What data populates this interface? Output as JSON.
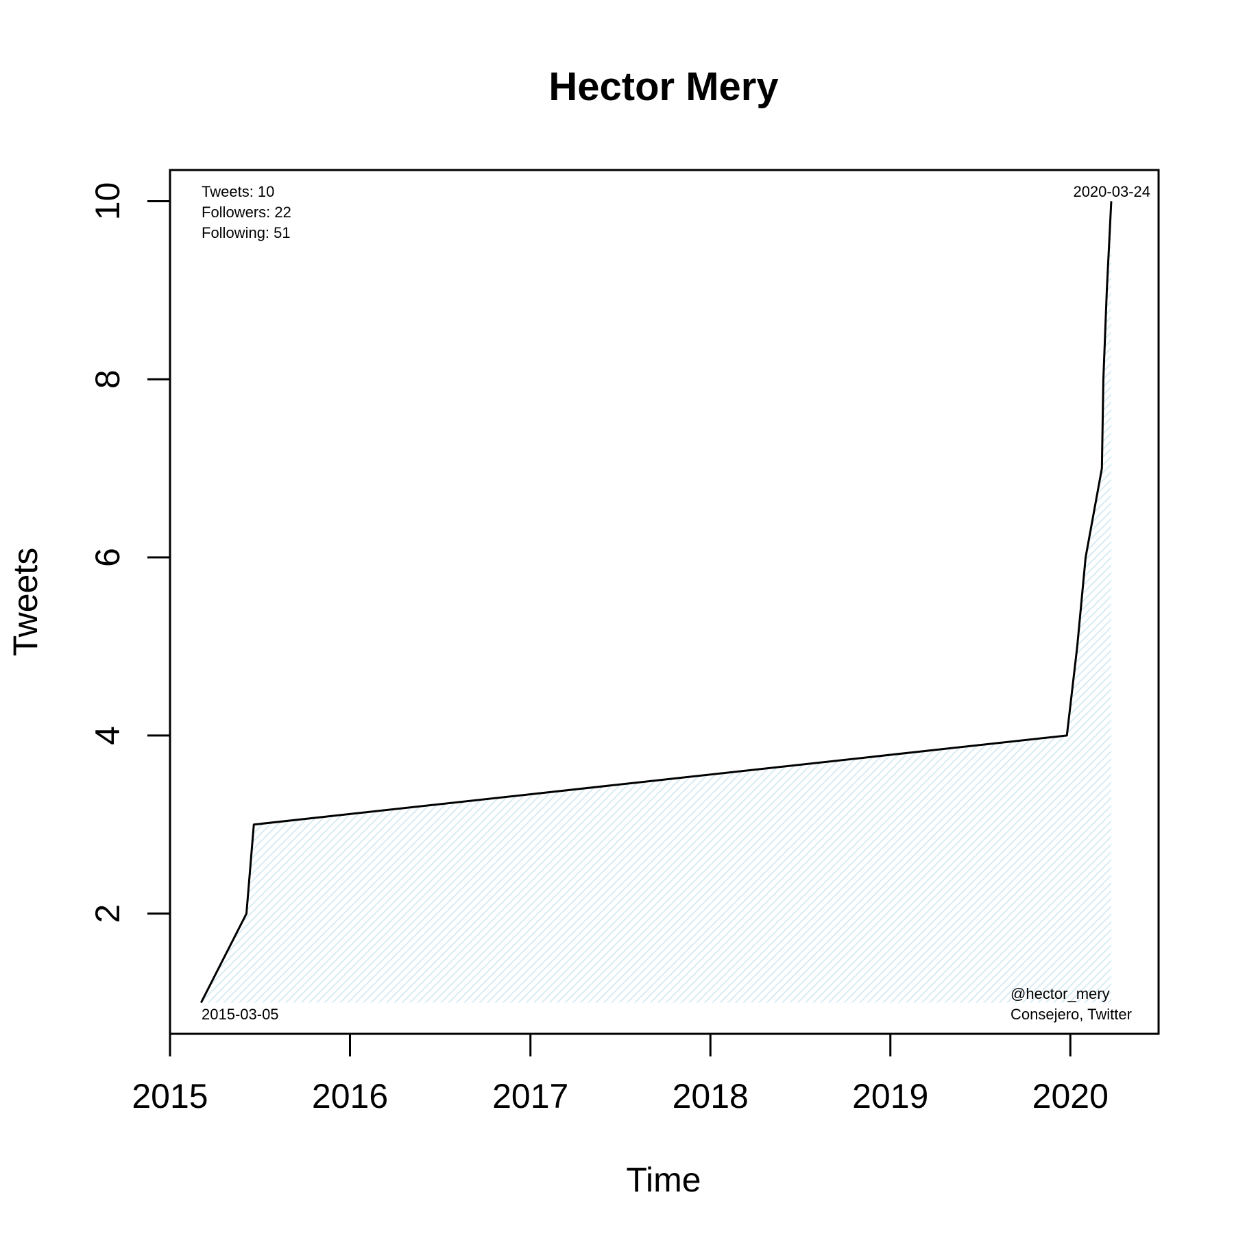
{
  "chart_data": {
    "type": "area",
    "title": "Hector Mery",
    "xlabel": "Time",
    "ylabel": "Tweets",
    "x_ticks": [
      "2015",
      "2016",
      "2017",
      "2018",
      "2019",
      "2020"
    ],
    "y_ticks": [
      2,
      4,
      6,
      8,
      10
    ],
    "xlim": [
      "2015-01-01",
      "2020-06-28"
    ],
    "ylim": [
      0.65,
      10.35
    ],
    "grid": false,
    "fill_color": "#d8ecf3",
    "line_color": "#000000",
    "points": [
      {
        "x": "2015-03-05",
        "y": 1
      },
      {
        "x": "2015-06-05",
        "y": 2
      },
      {
        "x": "2015-06-20",
        "y": 3
      },
      {
        "x": "2019-12-25",
        "y": 4
      },
      {
        "x": "2020-01-15",
        "y": 5
      },
      {
        "x": "2020-02-01",
        "y": 6
      },
      {
        "x": "2020-03-05",
        "y": 7
      },
      {
        "x": "2020-03-08",
        "y": 8
      },
      {
        "x": "2020-03-15",
        "y": 9
      },
      {
        "x": "2020-03-24",
        "y": 10
      }
    ],
    "annotations": {
      "stats": [
        "Tweets: 10",
        "Followers: 22",
        "Following: 51"
      ],
      "start_label": "2015-03-05",
      "end_label": "2020-03-24",
      "credit": [
        "@hector_mery",
        "Consejero, Twitter"
      ]
    }
  }
}
